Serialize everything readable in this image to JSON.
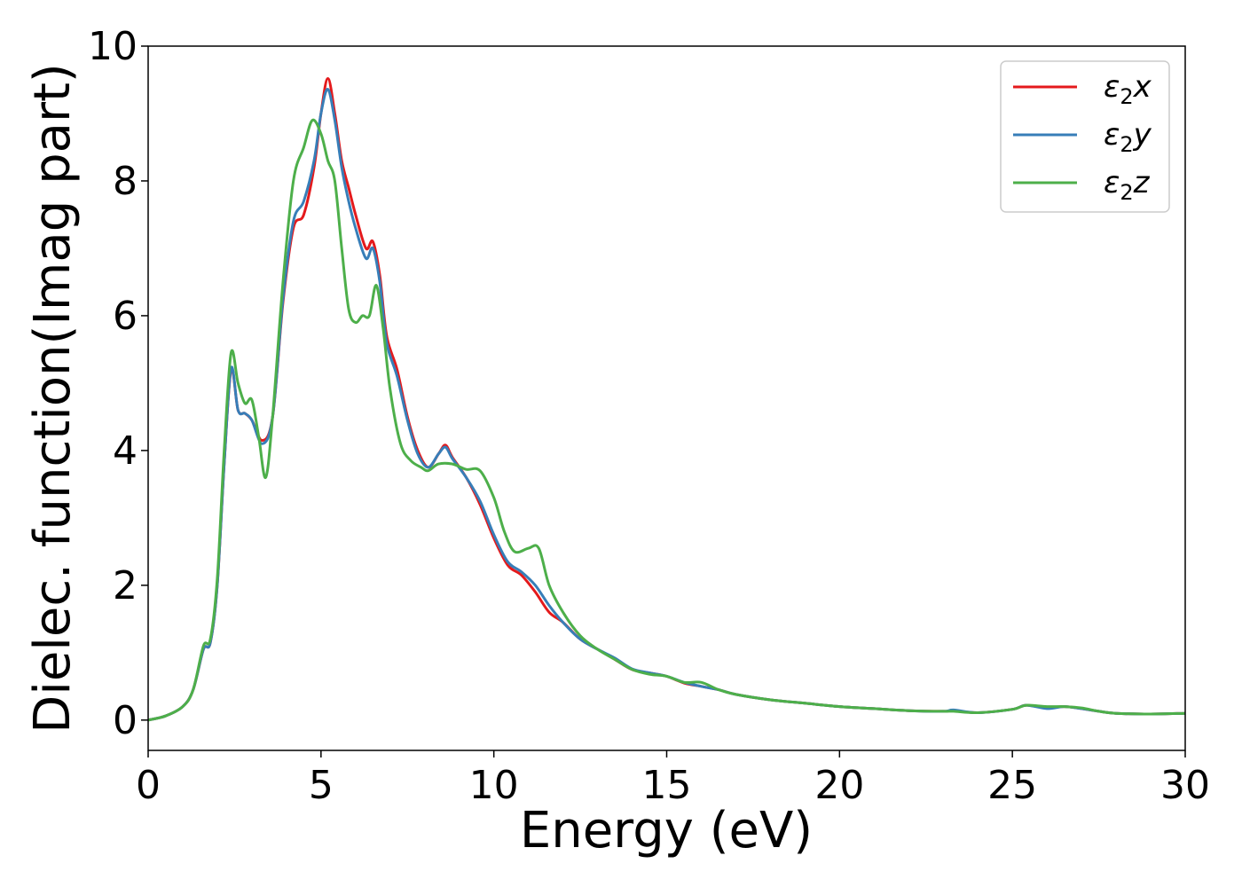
{
  "chart_data": {
    "type": "line",
    "title": "",
    "xlabel": "Energy (eV)",
    "ylabel": "Dielec. function(Imag part)",
    "xlim": [
      0,
      30
    ],
    "ylim": [
      -0.45,
      10
    ],
    "xticks": [
      0,
      5,
      10,
      15,
      20,
      25,
      30
    ],
    "yticks": [
      0,
      2,
      4,
      6,
      8,
      10
    ],
    "grid": false,
    "legend_position": "top-right",
    "series": [
      {
        "name": "ε2x",
        "legend_base": "ε",
        "legend_sub": "2",
        "legend_var": "x",
        "color": "#e41a1c",
        "x": [
          0,
          0.5,
          1,
          1.3,
          1.6,
          1.8,
          2.0,
          2.2,
          2.4,
          2.6,
          2.8,
          3.0,
          3.3,
          3.6,
          3.9,
          4.2,
          4.5,
          4.8,
          5.0,
          5.2,
          5.4,
          5.6,
          5.8,
          6.0,
          6.3,
          6.5,
          6.7,
          6.9,
          7.2,
          7.5,
          7.8,
          8.1,
          8.4,
          8.6,
          8.8,
          9.2,
          9.6,
          10.0,
          10.4,
          10.8,
          11.2,
          11.6,
          12.0,
          12.5,
          13.0,
          13.5,
          14.0,
          14.5,
          15.0,
          15.5,
          16.0,
          16.5,
          17.0,
          18.0,
          19.0,
          20.0,
          21.0,
          22.0,
          23.0,
          23.3,
          24.0,
          25.0,
          25.4,
          26.0,
          26.5,
          27.0,
          27.5,
          28.0,
          29.0,
          30.0
        ],
        "values": [
          0,
          0.06,
          0.2,
          0.45,
          1.05,
          1.15,
          2.0,
          3.8,
          5.2,
          4.6,
          4.55,
          4.45,
          4.15,
          4.5,
          6.2,
          7.3,
          7.5,
          8.2,
          9.0,
          9.52,
          9.0,
          8.3,
          7.9,
          7.5,
          7.0,
          7.1,
          6.6,
          5.7,
          5.2,
          4.5,
          4.0,
          3.75,
          3.95,
          4.08,
          3.9,
          3.6,
          3.2,
          2.7,
          2.3,
          2.15,
          1.9,
          1.6,
          1.45,
          1.2,
          1.05,
          0.9,
          0.75,
          0.7,
          0.65,
          0.55,
          0.5,
          0.45,
          0.38,
          0.3,
          0.25,
          0.2,
          0.17,
          0.14,
          0.13,
          0.14,
          0.11,
          0.16,
          0.22,
          0.18,
          0.2,
          0.17,
          0.13,
          0.1,
          0.09,
          0.1
        ]
      },
      {
        "name": "ε2y",
        "legend_base": "ε",
        "legend_sub": "2",
        "legend_var": "y",
        "color": "#377eb8",
        "x": [
          0,
          0.5,
          1,
          1.3,
          1.6,
          1.8,
          2.0,
          2.2,
          2.4,
          2.6,
          2.8,
          3.0,
          3.3,
          3.6,
          3.9,
          4.2,
          4.5,
          4.8,
          5.0,
          5.2,
          5.4,
          5.6,
          5.8,
          6.0,
          6.3,
          6.5,
          6.7,
          6.9,
          7.2,
          7.5,
          7.8,
          8.1,
          8.4,
          8.6,
          8.8,
          9.2,
          9.6,
          10.0,
          10.4,
          10.8,
          11.2,
          11.6,
          12.0,
          12.5,
          13.0,
          13.5,
          14.0,
          14.5,
          15.0,
          15.5,
          16.0,
          16.5,
          17.0,
          18.0,
          19.0,
          20.0,
          21.0,
          22.0,
          23.0,
          23.3,
          24.0,
          25.0,
          25.4,
          26.0,
          26.5,
          27.0,
          27.5,
          28.0,
          29.0,
          30.0
        ],
        "values": [
          0,
          0.06,
          0.2,
          0.45,
          1.05,
          1.15,
          2.0,
          3.8,
          5.22,
          4.6,
          4.55,
          4.45,
          4.1,
          4.5,
          6.25,
          7.4,
          7.7,
          8.3,
          9.0,
          9.36,
          8.9,
          8.2,
          7.7,
          7.3,
          6.85,
          7.0,
          6.5,
          5.6,
          5.1,
          4.45,
          3.95,
          3.75,
          3.95,
          4.05,
          3.88,
          3.6,
          3.25,
          2.75,
          2.35,
          2.2,
          2.0,
          1.7,
          1.45,
          1.2,
          1.05,
          0.92,
          0.76,
          0.7,
          0.65,
          0.56,
          0.5,
          0.45,
          0.38,
          0.3,
          0.25,
          0.2,
          0.17,
          0.14,
          0.13,
          0.15,
          0.11,
          0.16,
          0.22,
          0.17,
          0.2,
          0.17,
          0.13,
          0.1,
          0.09,
          0.1
        ]
      },
      {
        "name": "ε2z",
        "legend_base": "ε",
        "legend_sub": "2",
        "legend_var": "z",
        "color": "#4daf4a",
        "x": [
          0,
          0.5,
          1,
          1.3,
          1.6,
          1.8,
          2.0,
          2.2,
          2.4,
          2.6,
          2.8,
          3.0,
          3.2,
          3.4,
          3.6,
          3.9,
          4.2,
          4.5,
          4.75,
          5.0,
          5.2,
          5.4,
          5.6,
          5.8,
          6.0,
          6.2,
          6.4,
          6.6,
          6.8,
          7.0,
          7.3,
          7.6,
          7.9,
          8.1,
          8.4,
          8.8,
          9.2,
          9.6,
          10.0,
          10.3,
          10.6,
          11.0,
          11.3,
          11.6,
          12.0,
          12.5,
          13.0,
          13.5,
          14.0,
          14.5,
          15.0,
          15.5,
          16.0,
          16.5,
          17.0,
          18.0,
          19.0,
          20.0,
          21.0,
          22.0,
          23.0,
          23.3,
          24.0,
          25.0,
          25.4,
          26.0,
          26.5,
          27.0,
          27.5,
          28.0,
          29.0,
          30.0
        ],
        "values": [
          0,
          0.06,
          0.2,
          0.45,
          1.1,
          1.2,
          2.1,
          4.0,
          5.45,
          5.0,
          4.7,
          4.75,
          4.2,
          3.6,
          4.5,
          6.5,
          8.0,
          8.5,
          8.9,
          8.7,
          8.3,
          8.0,
          7.0,
          6.1,
          5.9,
          6.0,
          6.0,
          6.45,
          5.8,
          4.9,
          4.1,
          3.85,
          3.75,
          3.7,
          3.8,
          3.8,
          3.72,
          3.7,
          3.3,
          2.8,
          2.5,
          2.55,
          2.55,
          2.0,
          1.6,
          1.25,
          1.05,
          0.9,
          0.75,
          0.68,
          0.65,
          0.56,
          0.56,
          0.45,
          0.38,
          0.3,
          0.25,
          0.2,
          0.17,
          0.14,
          0.13,
          0.13,
          0.11,
          0.16,
          0.22,
          0.2,
          0.2,
          0.18,
          0.13,
          0.1,
          0.09,
          0.1
        ]
      }
    ]
  }
}
